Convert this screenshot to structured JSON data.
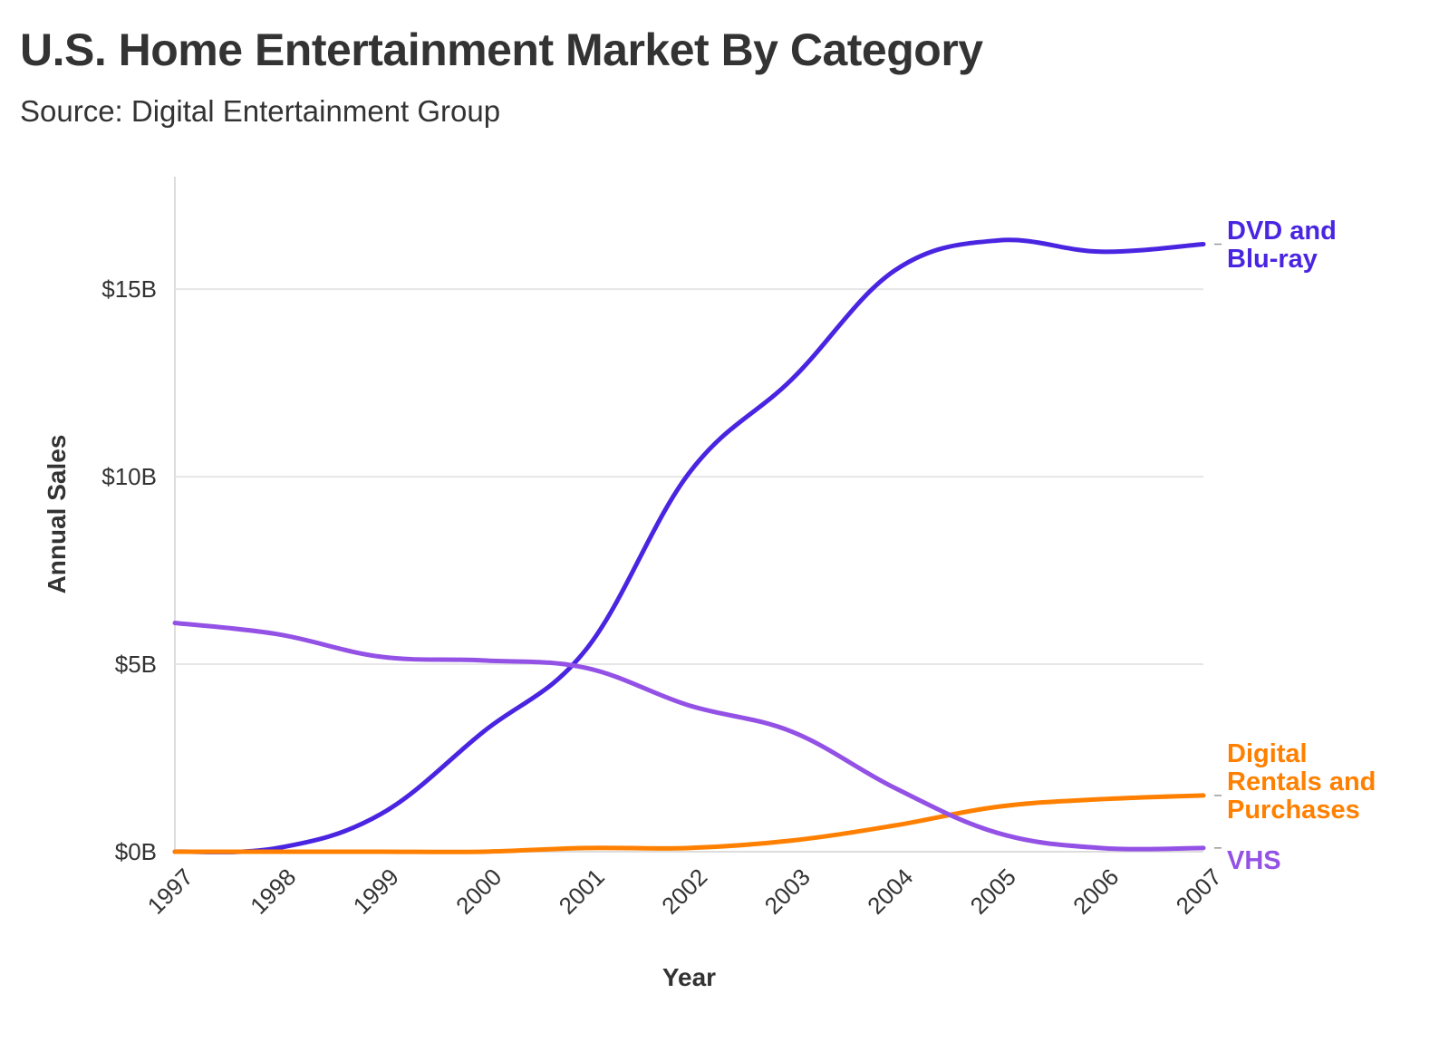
{
  "chart_data": {
    "type": "line",
    "title": "U.S. Home Entertainment Market By Category",
    "subtitle": "Source: Digital Entertainment Group",
    "xlabel": "Year",
    "ylabel": "Annual Sales",
    "x": [
      1997,
      1998,
      1999,
      2000,
      2001,
      2002,
      2003,
      2004,
      2005,
      2006,
      2007
    ],
    "x_tick_labels": [
      "1997",
      "1998",
      "1999",
      "2000",
      "2001",
      "2002",
      "2003",
      "2004",
      "2005",
      "2006",
      "2007"
    ],
    "ylim": [
      0,
      18
    ],
    "y_ticks": [
      0,
      5,
      10,
      15
    ],
    "y_tick_labels": [
      "$0B",
      "$5B",
      "$10B",
      "$15B"
    ],
    "grid": true,
    "legend": "direct labels at right end of lines",
    "series": [
      {
        "name": "DVD and Blu-ray",
        "label_lines": [
          "DVD and",
          "Blu-ray"
        ],
        "color": "#4a25e1",
        "values": [
          0.0,
          0.1,
          1.0,
          3.2,
          5.4,
          10.1,
          12.6,
          15.5,
          16.3,
          16.0,
          16.2
        ]
      },
      {
        "name": "Digital Rentals and Purchases",
        "label_lines": [
          "Digital",
          "Rentals and",
          "Purchases"
        ],
        "color": "#ff8000",
        "values": [
          0.0,
          0.0,
          0.0,
          0.0,
          0.1,
          0.1,
          0.3,
          0.7,
          1.2,
          1.4,
          1.5
        ]
      },
      {
        "name": "VHS",
        "label_lines": [
          "VHS"
        ],
        "color": "#9351e5",
        "values": [
          6.1,
          5.8,
          5.2,
          5.1,
          4.9,
          3.9,
          3.2,
          1.7,
          0.5,
          0.1,
          0.1
        ]
      }
    ]
  }
}
